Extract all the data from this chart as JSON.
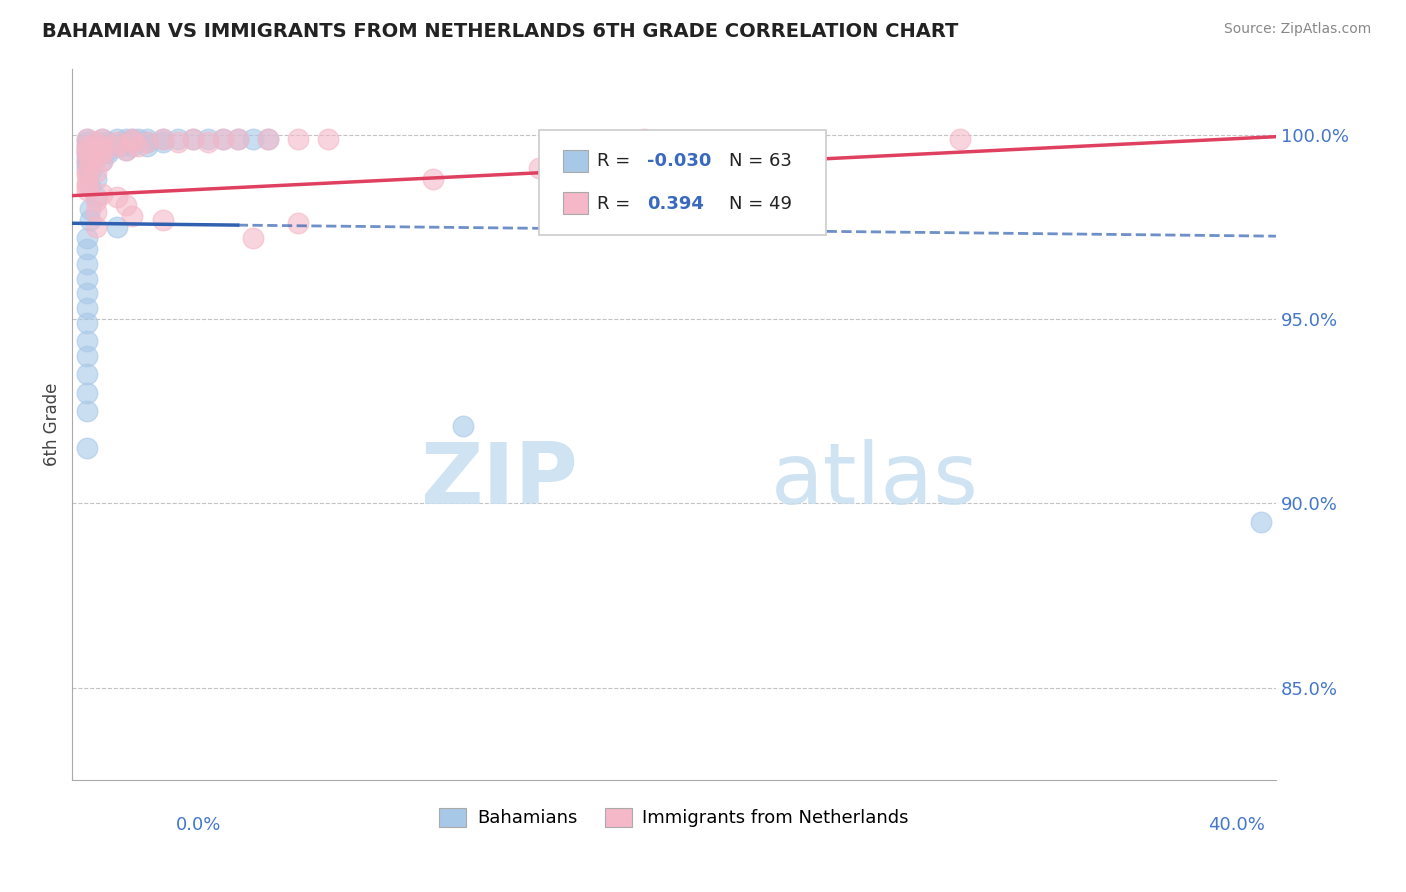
{
  "title": "BAHAMIAN VS IMMIGRANTS FROM NETHERLANDS 6TH GRADE CORRELATION CHART",
  "source": "Source: ZipAtlas.com",
  "ylabel": "6th Grade",
  "ytick_labels": [
    "85.0%",
    "90.0%",
    "95.0%",
    "100.0%"
  ],
  "ytick_values": [
    0.85,
    0.9,
    0.95,
    1.0
  ],
  "xlim": [
    0.0,
    0.4
  ],
  "ylim": [
    0.825,
    1.018
  ],
  "legend_blue_label": "Bahamians",
  "legend_pink_label": "Immigrants from Netherlands",
  "R_blue": -0.03,
  "N_blue": 63,
  "R_pink": 0.394,
  "N_pink": 49,
  "blue_color": "#a8c8e8",
  "pink_color": "#f4b8c8",
  "blue_line_color": "#3060b0",
  "pink_line_color": "#e04060",
  "watermark_zip": "ZIP",
  "watermark_atlas": "atlas",
  "blue_scatter": [
    [
      0.005,
      0.999
    ],
    [
      0.01,
      0.999
    ],
    [
      0.015,
      0.999
    ],
    [
      0.018,
      0.999
    ],
    [
      0.02,
      0.999
    ],
    [
      0.022,
      0.999
    ],
    [
      0.025,
      0.999
    ],
    [
      0.03,
      0.999
    ],
    [
      0.035,
      0.999
    ],
    [
      0.04,
      0.999
    ],
    [
      0.045,
      0.999
    ],
    [
      0.05,
      0.999
    ],
    [
      0.055,
      0.999
    ],
    [
      0.06,
      0.999
    ],
    [
      0.065,
      0.999
    ],
    [
      0.005,
      0.998
    ],
    [
      0.008,
      0.998
    ],
    [
      0.012,
      0.998
    ],
    [
      0.018,
      0.998
    ],
    [
      0.02,
      0.998
    ],
    [
      0.025,
      0.998
    ],
    [
      0.03,
      0.998
    ],
    [
      0.005,
      0.997
    ],
    [
      0.008,
      0.997
    ],
    [
      0.012,
      0.997
    ],
    [
      0.016,
      0.997
    ],
    [
      0.02,
      0.997
    ],
    [
      0.025,
      0.997
    ],
    [
      0.005,
      0.996
    ],
    [
      0.008,
      0.996
    ],
    [
      0.012,
      0.996
    ],
    [
      0.018,
      0.996
    ],
    [
      0.005,
      0.995
    ],
    [
      0.008,
      0.995
    ],
    [
      0.012,
      0.995
    ],
    [
      0.005,
      0.994
    ],
    [
      0.008,
      0.994
    ],
    [
      0.005,
      0.993
    ],
    [
      0.01,
      0.993
    ],
    [
      0.005,
      0.992
    ],
    [
      0.005,
      0.991
    ],
    [
      0.006,
      0.99
    ],
    [
      0.008,
      0.988
    ],
    [
      0.006,
      0.986
    ],
    [
      0.008,
      0.983
    ],
    [
      0.006,
      0.98
    ],
    [
      0.006,
      0.977
    ],
    [
      0.015,
      0.975
    ],
    [
      0.005,
      0.972
    ],
    [
      0.005,
      0.969
    ],
    [
      0.005,
      0.965
    ],
    [
      0.005,
      0.961
    ],
    [
      0.005,
      0.957
    ],
    [
      0.005,
      0.953
    ],
    [
      0.005,
      0.949
    ],
    [
      0.005,
      0.944
    ],
    [
      0.005,
      0.94
    ],
    [
      0.005,
      0.935
    ],
    [
      0.005,
      0.93
    ],
    [
      0.005,
      0.925
    ],
    [
      0.13,
      0.921
    ],
    [
      0.005,
      0.915
    ],
    [
      0.395,
      0.895
    ]
  ],
  "pink_scatter": [
    [
      0.005,
      0.999
    ],
    [
      0.01,
      0.999
    ],
    [
      0.02,
      0.999
    ],
    [
      0.03,
      0.999
    ],
    [
      0.04,
      0.999
    ],
    [
      0.05,
      0.999
    ],
    [
      0.055,
      0.999
    ],
    [
      0.065,
      0.999
    ],
    [
      0.075,
      0.999
    ],
    [
      0.085,
      0.999
    ],
    [
      0.19,
      0.999
    ],
    [
      0.295,
      0.999
    ],
    [
      0.008,
      0.998
    ],
    [
      0.015,
      0.998
    ],
    [
      0.02,
      0.998
    ],
    [
      0.025,
      0.998
    ],
    [
      0.035,
      0.998
    ],
    [
      0.045,
      0.998
    ],
    [
      0.005,
      0.997
    ],
    [
      0.01,
      0.997
    ],
    [
      0.015,
      0.997
    ],
    [
      0.022,
      0.997
    ],
    [
      0.005,
      0.996
    ],
    [
      0.01,
      0.996
    ],
    [
      0.018,
      0.996
    ],
    [
      0.005,
      0.995
    ],
    [
      0.01,
      0.995
    ],
    [
      0.008,
      0.994
    ],
    [
      0.005,
      0.993
    ],
    [
      0.01,
      0.993
    ],
    [
      0.006,
      0.992
    ],
    [
      0.155,
      0.991
    ],
    [
      0.005,
      0.99
    ],
    [
      0.008,
      0.99
    ],
    [
      0.005,
      0.989
    ],
    [
      0.12,
      0.988
    ],
    [
      0.005,
      0.987
    ],
    [
      0.005,
      0.986
    ],
    [
      0.005,
      0.985
    ],
    [
      0.01,
      0.984
    ],
    [
      0.015,
      0.983
    ],
    [
      0.008,
      0.982
    ],
    [
      0.018,
      0.981
    ],
    [
      0.008,
      0.979
    ],
    [
      0.02,
      0.978
    ],
    [
      0.03,
      0.977
    ],
    [
      0.075,
      0.976
    ],
    [
      0.008,
      0.975
    ],
    [
      0.06,
      0.972
    ]
  ],
  "blue_line_solid": [
    [
      0.0,
      0.976
    ],
    [
      0.055,
      0.9755
    ]
  ],
  "blue_line_dashed": [
    [
      0.055,
      0.9755
    ],
    [
      0.4,
      0.9725
    ]
  ],
  "pink_line": [
    [
      0.0,
      0.9835
    ],
    [
      0.4,
      0.9995
    ]
  ]
}
